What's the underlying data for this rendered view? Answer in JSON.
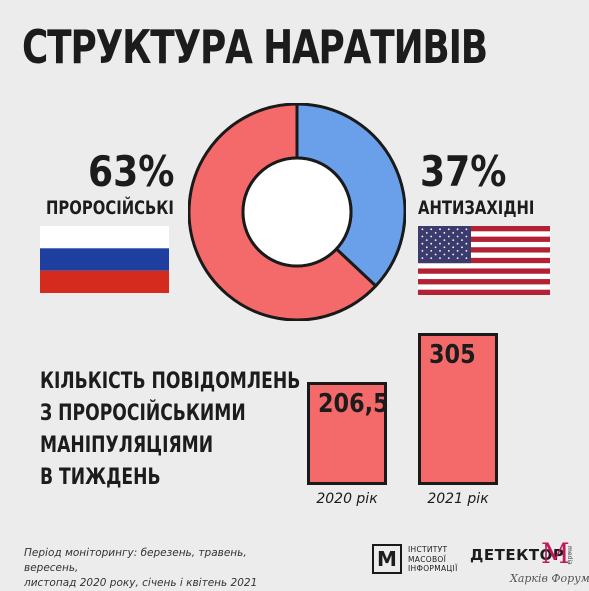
{
  "title": "СТРУКТУРА НАРАТИВІВ",
  "colors": {
    "pro_russian": "#f46a6b",
    "anti_western": "#6a9fea",
    "bar_fill": "#f46a6b",
    "outline": "#1a1a1a",
    "background": "#ececec"
  },
  "left": {
    "percent": "63%",
    "label": "ПРОРОСІЙСЬКІ",
    "flag": "russia-flag"
  },
  "right": {
    "percent": "37%",
    "label": "АНТИЗАХІДНІ",
    "flag": "usa-flag"
  },
  "bars_title": [
    "КІЛЬКІСТЬ ПОВІДОМЛЕНЬ",
    "З ПРОРОСІЙСЬКИМИ",
    "МАНІПУЛЯЦІЯМИ",
    "В ТИЖДЕНЬ"
  ],
  "bars": [
    {
      "value_label": "206,5",
      "category": "2020 рік"
    },
    {
      "value_label": "305",
      "category": "2021 рік"
    }
  ],
  "footer": {
    "period_line1": "Період моніторингу: березень, травень, вересень,",
    "period_line2": "листопад 2020 року, січень і квітень 2021",
    "imi_logo": "М",
    "imi_line1": "ІНСТИТУТ",
    "imi_line2": "МАСОВОЇ",
    "imi_line3": "ІНФОРМАЦІЇ",
    "detector_text": "ДЕТЕКТОР",
    "detector_m": "M",
    "detector_media": "media",
    "watermark": "Харків Форум"
  },
  "chart_data": [
    {
      "type": "pie",
      "categories": [
        "ПРОРОСІЙСЬКІ",
        "АНТИЗАХІДНІ"
      ],
      "values": [
        63,
        37
      ],
      "donut": true
    },
    {
      "type": "bar",
      "categories": [
        "2020 рік",
        "2021 рік"
      ],
      "values": [
        206.5,
        305
      ],
      "data_labels": [
        "206,5",
        "305"
      ]
    }
  ]
}
